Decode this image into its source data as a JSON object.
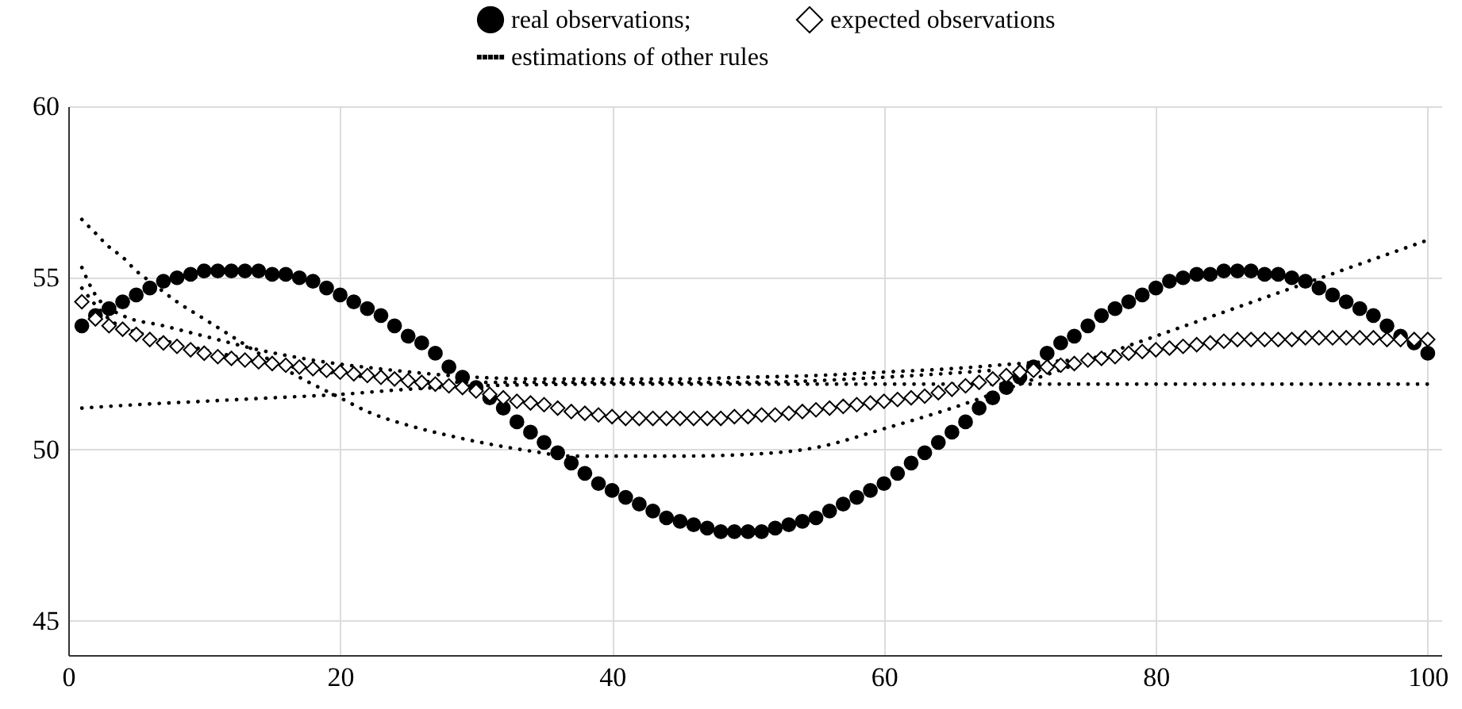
{
  "chart_data": {
    "type": "scatter",
    "xlim": [
      0,
      101
    ],
    "xticks": [
      0,
      20,
      40,
      60,
      80,
      100
    ],
    "ylim": [
      44,
      60
    ],
    "yticks": [
      45,
      50,
      55,
      60
    ],
    "grid": true,
    "legend": "top",
    "x": [
      1,
      2,
      3,
      4,
      5,
      6,
      7,
      8,
      9,
      10,
      11,
      12,
      13,
      14,
      15,
      16,
      17,
      18,
      19,
      20,
      21,
      22,
      23,
      24,
      25,
      26,
      27,
      28,
      29,
      30,
      31,
      32,
      33,
      34,
      35,
      36,
      37,
      38,
      39,
      40,
      41,
      42,
      43,
      44,
      45,
      46,
      47,
      48,
      49,
      50,
      51,
      52,
      53,
      54,
      55,
      56,
      57,
      58,
      59,
      60,
      61,
      62,
      63,
      64,
      65,
      66,
      67,
      68,
      69,
      70,
      71,
      72,
      73,
      74,
      75,
      76,
      77,
      78,
      79,
      80,
      81,
      82,
      83,
      84,
      85,
      86,
      87,
      88,
      89,
      90,
      91,
      92,
      93,
      94,
      95,
      96,
      97,
      98,
      99,
      100
    ],
    "series": [
      {
        "name": "real observations;",
        "marker": "circle",
        "color": "#000000",
        "values": [
          53.6,
          53.9,
          54.1,
          54.3,
          54.5,
          54.7,
          54.9,
          55.0,
          55.1,
          55.2,
          55.2,
          55.2,
          55.2,
          55.2,
          55.1,
          55.1,
          55.0,
          54.9,
          54.7,
          54.5,
          54.3,
          54.1,
          53.9,
          53.6,
          53.3,
          53.1,
          52.8,
          52.4,
          52.1,
          51.8,
          51.5,
          51.2,
          50.8,
          50.5,
          50.2,
          49.9,
          49.6,
          49.3,
          49.0,
          48.8,
          48.6,
          48.4,
          48.2,
          48.0,
          47.9,
          47.8,
          47.7,
          47.6,
          47.6,
          47.6,
          47.6,
          47.7,
          47.8,
          47.9,
          48.0,
          48.2,
          48.4,
          48.6,
          48.8,
          49.0,
          49.3,
          49.6,
          49.9,
          50.2,
          50.5,
          50.8,
          51.2,
          51.5,
          51.8,
          52.1,
          52.4,
          52.8,
          53.1,
          53.3,
          53.6,
          53.9,
          54.1,
          54.3,
          54.5,
          54.7,
          54.9,
          55.0,
          55.1,
          55.1,
          55.2,
          55.2,
          55.2,
          55.1,
          55.1,
          55.0,
          54.9,
          54.7,
          54.5,
          54.3,
          54.1,
          53.9,
          53.6,
          53.3,
          53.1,
          52.8
        ]
      },
      {
        "name": "expected observations",
        "marker": "diamond",
        "color": "#000000",
        "values": [
          54.3,
          53.8,
          53.6,
          53.5,
          53.35,
          53.2,
          53.1,
          53.0,
          52.9,
          52.8,
          52.7,
          52.65,
          52.6,
          52.55,
          52.5,
          52.45,
          52.4,
          52.35,
          52.3,
          52.25,
          52.2,
          52.15,
          52.1,
          52.05,
          52.0,
          51.95,
          51.9,
          51.85,
          51.8,
          51.7,
          51.6,
          51.5,
          51.4,
          51.35,
          51.3,
          51.2,
          51.1,
          51.05,
          51.0,
          50.95,
          50.9,
          50.9,
          50.9,
          50.9,
          50.9,
          50.9,
          50.9,
          50.9,
          50.95,
          50.95,
          51.0,
          51.0,
          51.05,
          51.1,
          51.15,
          51.2,
          51.25,
          51.3,
          51.35,
          51.4,
          51.45,
          51.5,
          51.55,
          51.65,
          51.75,
          51.85,
          51.95,
          52.05,
          52.15,
          52.25,
          52.3,
          52.4,
          52.45,
          52.5,
          52.6,
          52.65,
          52.7,
          52.8,
          52.85,
          52.9,
          52.95,
          53.0,
          53.05,
          53.1,
          53.15,
          53.2,
          53.2,
          53.2,
          53.2,
          53.2,
          53.25,
          53.25,
          53.25,
          53.25,
          53.25,
          53.25,
          53.2,
          53.2,
          53.2,
          53.2
        ]
      },
      {
        "name": "estimations of other rules",
        "type": "line",
        "line_style": "dotted",
        "color": "#000000",
        "x": [
          1,
          2,
          3,
          4,
          5,
          6,
          8,
          10,
          12,
          14,
          17,
          20,
          22,
          25,
          28,
          31,
          34,
          37,
          40,
          45,
          50,
          55,
          60,
          65,
          70,
          75,
          80,
          85,
          90,
          95,
          100
        ],
        "values": [
          56.7,
          56.3,
          55.9,
          55.6,
          55.2,
          54.9,
          54.3,
          53.8,
          53.3,
          52.8,
          52.1,
          51.5,
          51.1,
          50.7,
          50.4,
          50.15,
          49.95,
          49.8,
          49.8,
          49.8,
          49.85,
          50.05,
          50.6,
          51.2,
          51.9,
          52.6,
          53.3,
          54.0,
          54.7,
          55.4,
          56.1
        ]
      },
      {
        "type": "line",
        "line_style": "dotted",
        "color": "#000000",
        "x": [
          1,
          2,
          4,
          7,
          10,
          14,
          18,
          24,
          30,
          35,
          40,
          45,
          50,
          55,
          60,
          65,
          70,
          74
        ],
        "values": [
          55.3,
          54.5,
          53.9,
          53.6,
          53.3,
          52.9,
          52.6,
          52.3,
          52.1,
          52.05,
          52.05,
          52.05,
          52.1,
          52.15,
          52.25,
          52.35,
          52.5,
          52.6
        ]
      },
      {
        "type": "line",
        "line_style": "dotted",
        "color": "#000000",
        "x": [
          1,
          3,
          6,
          10,
          15,
          20,
          25,
          30,
          40,
          50,
          60,
          68
        ],
        "values": [
          54.7,
          53.8,
          53.3,
          52.9,
          52.5,
          52.2,
          52.0,
          51.95,
          51.95,
          51.95,
          52.1,
          52.3
        ]
      },
      {
        "type": "line",
        "line_style": "dotted",
        "color": "#000000",
        "x": [
          1,
          5,
          10,
          15,
          20,
          25,
          30,
          40,
          50,
          60,
          70,
          80,
          90,
          100
        ],
        "values": [
          51.2,
          51.3,
          51.4,
          51.5,
          51.6,
          51.75,
          51.85,
          51.9,
          51.9,
          51.9,
          51.9,
          51.9,
          51.9,
          51.9
        ]
      }
    ]
  }
}
